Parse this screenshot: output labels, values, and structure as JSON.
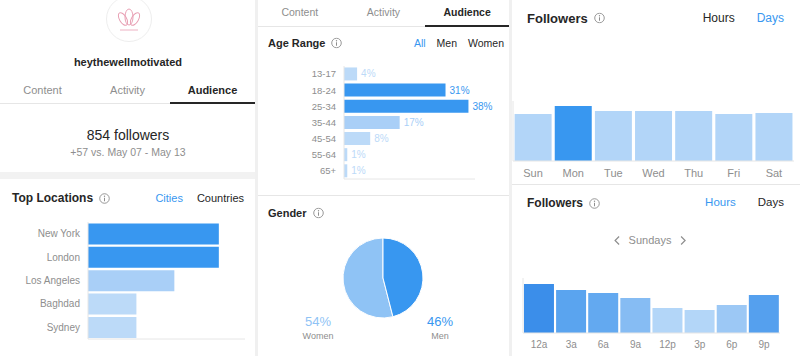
{
  "header": {
    "account": "heythewellmotivated",
    "tabs": [
      "Content",
      "Activity",
      "Audience"
    ],
    "active_tab": "Audience",
    "followers": "854 followers",
    "change": "+57 vs. May 07 - May 13"
  },
  "toggles": [
    {
      "options": [
        "Cities",
        "Countries"
      ],
      "active": "Cities"
    },
    {
      "options": [
        "All",
        "Men",
        "Women"
      ],
      "active": "All"
    },
    {
      "options": [
        "Hours",
        "Days"
      ],
      "active": "Days"
    },
    {
      "options": [
        "Hours",
        "Days"
      ],
      "active": "Hours"
    }
  ],
  "chart_data": [
    {
      "type": "bar",
      "title": "Top Locations",
      "orientation": "horizontal",
      "categories": [
        "New York",
        "London",
        "Los Angeles",
        "Baghdad",
        "Sydney"
      ],
      "values": [
        100,
        100,
        66,
        37,
        37
      ],
      "colors": [
        "#3897f0",
        "#3897f0",
        "#a9cff7",
        "#bcdaf8",
        "#bcdaf8"
      ],
      "xlim": [
        0,
        120
      ],
      "tick_labels": "y"
    },
    {
      "type": "bar",
      "title": "Age Range",
      "orientation": "horizontal",
      "categories": [
        "13-17",
        "18-24",
        "25-34",
        "35-44",
        "45-54",
        "55-64",
        "65+"
      ],
      "values": [
        4,
        31,
        38,
        17,
        8,
        1,
        1
      ],
      "value_labels": [
        "4%",
        "31%",
        "38%",
        "17%",
        "8%",
        "1%",
        "1%"
      ],
      "data_labels": true,
      "colors": [
        "#bcdaf8",
        "#3897f0",
        "#3897f0",
        "#a9cff7",
        "#bcdaf8",
        "#bcdaf8",
        "#bcdaf8"
      ],
      "xlim": [
        0,
        40
      ],
      "tick_labels": "y"
    },
    {
      "type": "pie",
      "title": "Gender",
      "categories": [
        "Women",
        "Men"
      ],
      "values": [
        54,
        46
      ],
      "value_labels": [
        "54%",
        "46%"
      ],
      "data_labels": true,
      "colors": [
        "#8fc3f5",
        "#3897f0"
      ]
    },
    {
      "type": "bar",
      "title": "Followers",
      "categories": [
        "Sun",
        "Mon",
        "Tue",
        "Wed",
        "Thu",
        "Fri",
        "Sat"
      ],
      "values": [
        47,
        55,
        50,
        50,
        50,
        47,
        48
      ],
      "colors": [
        "#b2d5f8",
        "#3897f0",
        "#b2d5f8",
        "#b2d5f8",
        "#b2d5f8",
        "#b2d5f8",
        "#b2d5f8"
      ],
      "ylim": [
        0,
        60
      ],
      "tick_labels": "x"
    },
    {
      "type": "bar",
      "title": "Followers",
      "subtitle": "Sundays",
      "categories": [
        "12a",
        "3a",
        "6a",
        "9a",
        "12p",
        "3p",
        "6p",
        "9p"
      ],
      "values": [
        49,
        43,
        40,
        35,
        25,
        23,
        28,
        38
      ],
      "colors": [
        "#3b8eea",
        "#5aa4ef",
        "#63a9f0",
        "#86bcf3",
        "#b3d6f8",
        "#b3d6f8",
        "#9cc8f5",
        "#55a0ee"
      ],
      "ylim": [
        0,
        55
      ],
      "tick_labels": "x"
    }
  ]
}
